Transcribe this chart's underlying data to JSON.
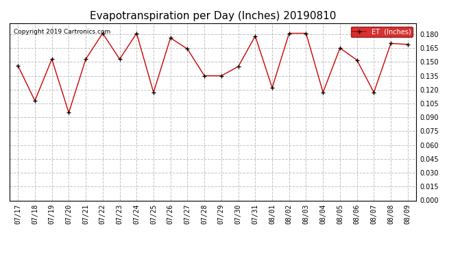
{
  "title": "Evapotranspiration per Day (Inches) 20190810",
  "copyright": "Copyright 2019 Cartronics.com",
  "legend_label": "ET  (Inches)",
  "labels": [
    "07/17",
    "07/18",
    "07/19",
    "07/20",
    "07/21",
    "07/22",
    "07/23",
    "07/24",
    "07/25",
    "07/26",
    "07/27",
    "07/28",
    "07/29",
    "07/30",
    "07/31",
    "08/01",
    "08/02",
    "08/03",
    "08/04",
    "08/05",
    "08/06",
    "08/07",
    "08/08",
    "08/09"
  ],
  "values": [
    0.146,
    0.108,
    0.153,
    0.095,
    0.153,
    0.181,
    0.153,
    0.181,
    0.117,
    0.176,
    0.164,
    0.135,
    0.135,
    0.145,
    0.178,
    0.122,
    0.181,
    0.181,
    0.117,
    0.165,
    0.152,
    0.117,
    0.17,
    0.169
  ],
  "ylim": [
    0.0,
    0.192
  ],
  "yticks": [
    0.0,
    0.015,
    0.03,
    0.045,
    0.06,
    0.075,
    0.09,
    0.105,
    0.12,
    0.135,
    0.15,
    0.165,
    0.18
  ],
  "line_color": "#cc0000",
  "marker_color": "#000000",
  "background_color": "#ffffff",
  "grid_color": "#bbbbbb",
  "title_fontsize": 11,
  "copyright_fontsize": 6.5,
  "tick_fontsize": 7,
  "legend_bg": "#cc0000",
  "legend_fg": "#ffffff"
}
